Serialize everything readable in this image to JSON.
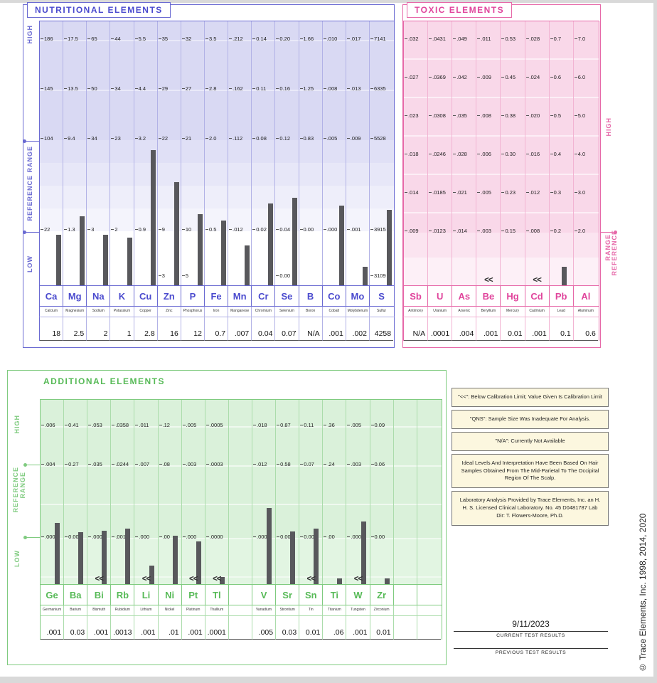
{
  "report": {
    "date_value": "9/11/2023",
    "current_results_label": "CURRENT TEST RESULTS",
    "previous_results_label": "PREVIOUS TEST RESULTS",
    "copyright_vertical": "© Trace Elements, Inc. 1998, 2014, 2020"
  },
  "axis_labels": {
    "high": "HIGH",
    "reference_range": "REFERENCE RANGE",
    "reference": "REFERENCE",
    "range": "RANGE",
    "low": "LOW"
  },
  "notes": [
    "\"<<\": Below Calibration Limit; Value Given Is Calibration Limit",
    "\"QNS\": Sample Size Was Inadequate For Analysis.",
    "\"N/A\": Currently Not Available",
    "Ideal Levels And Interpretation Have Been Based On Hair Samples Obtained From The Mid-Parietal To The Occipital Region Of The Scalp.",
    "Laboratory Analysis Provided by Trace Elements, Inc. an H. H. S. Licensed Clinical Laboratory. No. 45 D0481787  Lab Dir: T. Flowers-Moore, Ph.D."
  ],
  "panels": {
    "nutritional": {
      "title": "NUTRITIONAL ELEMENTS",
      "columns": [
        {
          "symbol": "Ca",
          "name": "Calcium",
          "scale": [
            "186",
            "145",
            "104",
            "22"
          ],
          "scale_extra": "",
          "result": "18",
          "bar": 0.19,
          "flag": ""
        },
        {
          "symbol": "Mg",
          "name": "Magnesium",
          "scale": [
            "17.5",
            "13.5",
            "9.4",
            "1.3"
          ],
          "scale_extra": "",
          "result": "2.5",
          "bar": 0.26,
          "flag": ""
        },
        {
          "symbol": "Na",
          "name": "Sodium",
          "scale": [
            "65",
            "50",
            "34",
            "3"
          ],
          "scale_extra": "",
          "result": "2",
          "bar": 0.19,
          "flag": ""
        },
        {
          "symbol": "K",
          "name": "Potassium",
          "scale": [
            "44",
            "34",
            "23",
            "2"
          ],
          "scale_extra": "",
          "result": "1",
          "bar": 0.18,
          "flag": ""
        },
        {
          "symbol": "Cu",
          "name": "Copper",
          "scale": [
            "5.5",
            "4.4",
            "3.2",
            "0.9"
          ],
          "scale_extra": "",
          "result": "2.8",
          "bar": 0.51,
          "flag": ""
        },
        {
          "symbol": "Zn",
          "name": "Zinc",
          "scale": [
            "35",
            "29",
            "22",
            "9"
          ],
          "scale_extra": "3",
          "result": "16",
          "bar": 0.39,
          "flag": ""
        },
        {
          "symbol": "P",
          "name": "Phosphorus",
          "scale": [
            "32",
            "27",
            "21",
            "10"
          ],
          "scale_extra": "5",
          "result": "12",
          "bar": 0.27,
          "flag": ""
        },
        {
          "symbol": "Fe",
          "name": "Iron",
          "scale": [
            "3.5",
            "2.8",
            "2.0",
            "0.5"
          ],
          "scale_extra": "",
          "result": "0.7",
          "bar": 0.245,
          "flag": ""
        },
        {
          "symbol": "Mn",
          "name": "Manganese",
          "scale": [
            ".212",
            ".162",
            ".112",
            ".012"
          ],
          "scale_extra": "",
          "result": ".007",
          "bar": 0.15,
          "flag": ""
        },
        {
          "symbol": "Cr",
          "name": "Chromium",
          "scale": [
            "0.14",
            "0.11",
            "0.08",
            "0.02"
          ],
          "scale_extra": "",
          "result": "0.04",
          "bar": 0.31,
          "flag": ""
        },
        {
          "symbol": "Se",
          "name": "Selenium",
          "scale": [
            "0.20",
            "0.16",
            "0.12",
            "0.04"
          ],
          "scale_extra": "0.00",
          "result": "0.07",
          "bar": 0.33,
          "flag": ""
        },
        {
          "symbol": "B",
          "name": "Boron",
          "scale": [
            "1.66",
            "1.25",
            "0.83",
            "0.00"
          ],
          "scale_extra": "",
          "result": "N/A",
          "bar": 0,
          "flag": ""
        },
        {
          "symbol": "Co",
          "name": "Cobalt",
          "scale": [
            ".010",
            ".008",
            ".005",
            ".000"
          ],
          "scale_extra": "",
          "result": ".001",
          "bar": 0.3,
          "flag": ""
        },
        {
          "symbol": "Mo",
          "name": "Molybdenum",
          "scale": [
            ".017",
            ".013",
            ".009",
            ".001"
          ],
          "scale_extra": "",
          "result": ".002",
          "bar": 0.07,
          "flag": ""
        },
        {
          "symbol": "S",
          "name": "Sulfur",
          "scale": [
            "7141",
            "6335",
            "5528",
            "3915"
          ],
          "scale_extra": "3109",
          "result": "4258",
          "bar": 0.285,
          "flag": ""
        }
      ]
    },
    "toxic": {
      "title": "TOXIC ELEMENTS",
      "columns": [
        {
          "symbol": "Sb",
          "name": "Antimony",
          "scale": [
            ".032",
            ".027",
            ".023",
            ".018",
            ".014",
            ".009"
          ],
          "result": "N/A",
          "bar": 0,
          "flag": ""
        },
        {
          "symbol": "U",
          "name": "Uranium",
          "scale": [
            ".0431",
            ".0369",
            ".0308",
            ".0246",
            ".0185",
            ".0123"
          ],
          "result": ".0001",
          "bar": 0,
          "flag": ""
        },
        {
          "symbol": "As",
          "name": "Arsenic",
          "scale": [
            ".049",
            ".042",
            ".035",
            ".028",
            ".021",
            ".014"
          ],
          "result": ".004",
          "bar": 0,
          "flag": ""
        },
        {
          "symbol": "Be",
          "name": "Beryllium",
          "scale": [
            ".011",
            ".009",
            ".008",
            ".006",
            ".005",
            ".003"
          ],
          "result": ".001",
          "bar": 0,
          "flag": "<<"
        },
        {
          "symbol": "Hg",
          "name": "Mercury",
          "scale": [
            "0.53",
            "0.45",
            "0.38",
            "0.30",
            "0.23",
            "0.15"
          ],
          "result": "0.01",
          "bar": 0,
          "flag": ""
        },
        {
          "symbol": "Cd",
          "name": "Cadmium",
          "scale": [
            ".028",
            ".024",
            ".020",
            ".016",
            ".012",
            ".008"
          ],
          "result": ".001",
          "bar": 0,
          "flag": "<<"
        },
        {
          "symbol": "Pb",
          "name": "Lead",
          "scale": [
            "0.7",
            "0.6",
            "0.5",
            "0.4",
            "0.3",
            "0.2"
          ],
          "result": "0.1",
          "bar": 0.07,
          "flag": ""
        },
        {
          "symbol": "Al",
          "name": "Aluminum",
          "scale": [
            "7.0",
            "6.0",
            "5.0",
            "4.0",
            "3.0",
            "2.0"
          ],
          "result": "0.6",
          "bar": 0,
          "flag": ""
        }
      ]
    },
    "additional": {
      "title": "ADDITIONAL ELEMENTS",
      "columns": [
        {
          "symbol": "Ge",
          "name": "Germanium",
          "scale": [
            ".006",
            ".004",
            ".000"
          ],
          "result": ".001",
          "bar": 0.33,
          "flag": ""
        },
        {
          "symbol": "Ba",
          "name": "Barium",
          "scale": [
            "0.41",
            "0.27",
            "0.00"
          ],
          "result": "0.03",
          "bar": 0.28,
          "flag": ""
        },
        {
          "symbol": "Bi",
          "name": "Bismuth",
          "scale": [
            ".053",
            ".035",
            ".000"
          ],
          "result": ".001",
          "bar": 0.29,
          "flag": "<<"
        },
        {
          "symbol": "Rb",
          "name": "Rubidium",
          "scale": [
            ".0358",
            ".0244",
            ".0017"
          ],
          "result": ".0013",
          "bar": 0.3,
          "flag": ""
        },
        {
          "symbol": "Li",
          "name": "Lithium",
          "scale": [
            ".011",
            ".007",
            ".000"
          ],
          "result": ".001",
          "bar": 0.1,
          "flag": "<<"
        },
        {
          "symbol": "Ni",
          "name": "Nickel",
          "scale": [
            ".12",
            ".08",
            ".00"
          ],
          "result": ".01",
          "bar": 0.26,
          "flag": ""
        },
        {
          "symbol": "Pt",
          "name": "Platinum",
          "scale": [
            ".005",
            ".003",
            ".000"
          ],
          "result": ".001",
          "bar": 0.23,
          "flag": "<<"
        },
        {
          "symbol": "Tl",
          "name": "Thallium",
          "scale": [
            ".0005",
            ".0003",
            ".0000"
          ],
          "result": ".0001",
          "bar": 0.04,
          "flag": "<<"
        },
        {
          "symbol": "",
          "name": "",
          "scale": [],
          "result": "",
          "bar": 0,
          "flag": ""
        },
        {
          "symbol": "V",
          "name": "Vanadium",
          "scale": [
            ".018",
            ".012",
            ".000"
          ],
          "result": ".005",
          "bar": 0.41,
          "flag": ""
        },
        {
          "symbol": "Sr",
          "name": "Strontium",
          "scale": [
            "0.87",
            "0.58",
            "0.00"
          ],
          "result": "0.03",
          "bar": 0.285,
          "flag": ""
        },
        {
          "symbol": "Sn",
          "name": "Tin",
          "scale": [
            "0.11",
            "0.07",
            "0.00"
          ],
          "result": "0.01",
          "bar": 0.3,
          "flag": "<<"
        },
        {
          "symbol": "Ti",
          "name": "Titanium",
          "scale": [
            ".36",
            ".24",
            ".00"
          ],
          "result": ".06",
          "bar": 0.03,
          "flag": ""
        },
        {
          "symbol": "W",
          "name": "Tungsten",
          "scale": [
            ".005",
            ".003",
            ".000"
          ],
          "result": ".001",
          "bar": 0.34,
          "flag": "<<"
        },
        {
          "symbol": "Zr",
          "name": "Zirconium",
          "scale": [
            "0.09",
            "0.06",
            "0.00"
          ],
          "result": "0.01",
          "bar": 0.03,
          "flag": ""
        },
        {
          "symbol": "",
          "name": "",
          "scale": [],
          "result": "",
          "bar": 0,
          "flag": ""
        },
        {
          "symbol": "",
          "name": "",
          "scale": [],
          "result": "",
          "bar": 0,
          "flag": ""
        }
      ]
    }
  },
  "chart_data": [
    {
      "type": "bar",
      "title": "NUTRITIONAL ELEMENTS",
      "categories": [
        "Ca",
        "Mg",
        "Na",
        "K",
        "Cu",
        "Zn",
        "P",
        "Fe",
        "Mn",
        "Cr",
        "Se",
        "B",
        "Co",
        "Mo",
        "S"
      ],
      "values": [
        18,
        2.5,
        2,
        1,
        2.8,
        16,
        12,
        0.7,
        0.007,
        0.04,
        0.07,
        null,
        0.001,
        0.002,
        4258
      ],
      "value_labels": [
        "18",
        "2.5",
        "2",
        "1",
        "2.8",
        "16",
        "12",
        "0.7",
        ".007",
        "0.04",
        "0.07",
        "N/A",
        ".001",
        ".002",
        "4258"
      ],
      "legend_position": "none",
      "grid": "horizontal-bands",
      "note": "Per-column nonlinear scales; tick values listed in panels.nutritional.columns[].scale"
    },
    {
      "type": "bar",
      "title": "TOXIC ELEMENTS",
      "categories": [
        "Sb",
        "U",
        "As",
        "Be",
        "Hg",
        "Cd",
        "Pb",
        "Al"
      ],
      "values": [
        null,
        0.0001,
        0.004,
        0.001,
        0.01,
        0.001,
        0.1,
        0.6
      ],
      "value_labels": [
        "N/A",
        ".0001",
        ".004",
        ".001",
        "0.01",
        ".001",
        "0.1",
        "0.6"
      ],
      "below_calibration_flags": [
        "Be",
        "Cd"
      ],
      "legend_position": "none",
      "grid": "horizontal-bands",
      "note": "Per-column nonlinear scales; tick values listed in panels.toxic.columns[].scale"
    },
    {
      "type": "bar",
      "title": "ADDITIONAL ELEMENTS",
      "categories": [
        "Ge",
        "Ba",
        "Bi",
        "Rb",
        "Li",
        "Ni",
        "Pt",
        "Tl",
        "V",
        "Sr",
        "Sn",
        "Ti",
        "W",
        "Zr"
      ],
      "values": [
        0.001,
        0.03,
        0.001,
        0.0013,
        0.001,
        0.01,
        0.001,
        0.0001,
        0.005,
        0.03,
        0.01,
        0.06,
        0.001,
        0.01
      ],
      "value_labels": [
        ".001",
        "0.03",
        ".001",
        ".0013",
        ".001",
        ".01",
        ".001",
        ".0001",
        ".005",
        "0.03",
        "0.01",
        ".06",
        ".001",
        "0.01"
      ],
      "below_calibration_flags": [
        "Bi",
        "Li",
        "Pt",
        "Tl",
        "Sn",
        "W"
      ],
      "legend_position": "none",
      "grid": "horizontal-bands",
      "note": "Per-column nonlinear scales; tick values listed in panels.additional.columns[].scale"
    }
  ]
}
